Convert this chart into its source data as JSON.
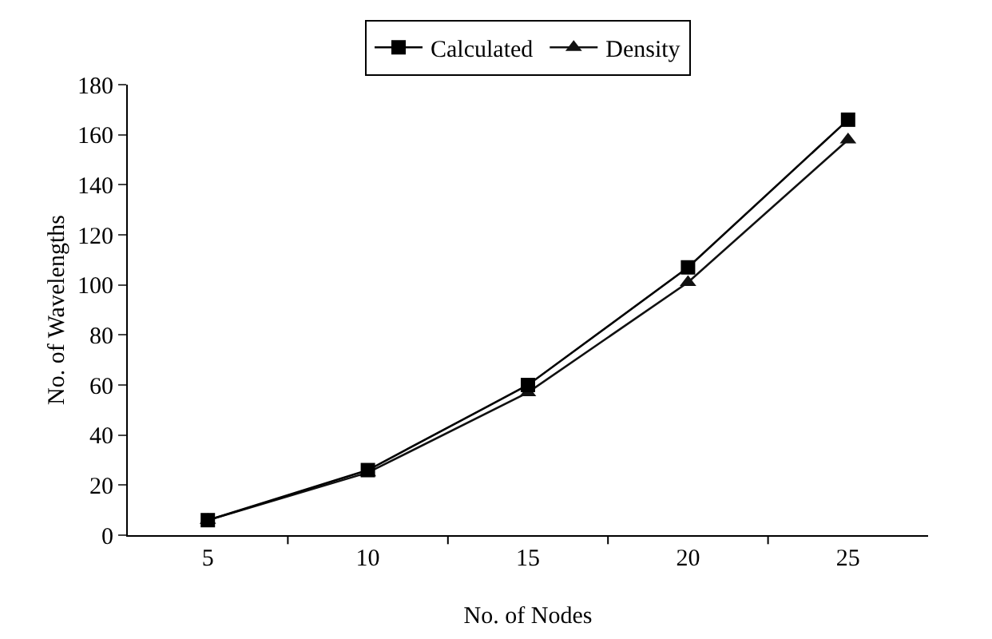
{
  "chart_data": {
    "type": "line",
    "xlabel": "No. of Nodes",
    "ylabel": "No. of Wavelengths",
    "categories": [
      "5",
      "10",
      "15",
      "20",
      "25"
    ],
    "series": [
      {
        "name": "Calculated",
        "color": "#000000",
        "marker": "square",
        "values": [
          6,
          26,
          60,
          107,
          166
        ]
      },
      {
        "name": "Density",
        "color": "#111111",
        "marker": "triangle",
        "values": [
          6,
          25,
          57,
          101,
          158
        ]
      }
    ],
    "ylim": [
      0,
      180
    ],
    "yticks": [
      0,
      20,
      40,
      60,
      80,
      100,
      120,
      140,
      160,
      180
    ],
    "grid": false,
    "legend": "top",
    "line_style": "solid"
  }
}
